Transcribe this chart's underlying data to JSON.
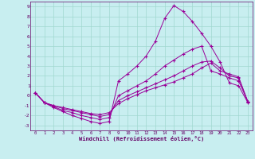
{
  "xlabel": "Windchill (Refroidissement éolien,°C)",
  "bg_color": "#c8eef0",
  "grid_color": "#a0d8d0",
  "line_color": "#990099",
  "xlim": [
    -0.5,
    23.5
  ],
  "ylim": [
    -3.5,
    9.5
  ],
  "xticks": [
    0,
    1,
    2,
    3,
    4,
    5,
    6,
    7,
    8,
    9,
    10,
    11,
    12,
    13,
    14,
    15,
    16,
    17,
    18,
    19,
    20,
    21,
    22,
    23
  ],
  "yticks": [
    -3,
    -2,
    -1,
    0,
    1,
    2,
    3,
    4,
    5,
    6,
    7,
    8,
    9
  ],
  "curves": [
    [
      0.3,
      -0.7,
      -1.2,
      -1.6,
      -2.0,
      -2.3,
      -2.6,
      -2.8,
      -2.6,
      1.5,
      2.2,
      3.0,
      4.0,
      5.5,
      7.8,
      9.1,
      8.5,
      7.5,
      6.3,
      5.0,
      3.4,
      1.3,
      1.0,
      -0.7
    ],
    [
      0.3,
      -0.7,
      -1.1,
      -1.5,
      -1.7,
      -2.0,
      -2.2,
      -2.4,
      -2.2,
      0.0,
      0.5,
      1.0,
      1.5,
      2.2,
      3.0,
      3.6,
      4.2,
      4.7,
      5.0,
      2.5,
      2.2,
      1.8,
      1.5,
      -0.6
    ],
    [
      0.3,
      -0.7,
      -1.0,
      -1.3,
      -1.5,
      -1.7,
      -1.9,
      -2.1,
      -1.9,
      -0.5,
      0.0,
      0.4,
      0.8,
      1.2,
      1.6,
      2.0,
      2.5,
      3.0,
      3.4,
      3.5,
      2.8,
      2.0,
      1.8,
      -0.6
    ],
    [
      0.3,
      -0.7,
      -1.0,
      -1.2,
      -1.4,
      -1.6,
      -1.8,
      -1.9,
      -1.7,
      -0.8,
      -0.3,
      0.1,
      0.5,
      0.8,
      1.1,
      1.4,
      1.8,
      2.2,
      2.8,
      3.3,
      2.5,
      2.2,
      1.9,
      -0.6
    ]
  ]
}
